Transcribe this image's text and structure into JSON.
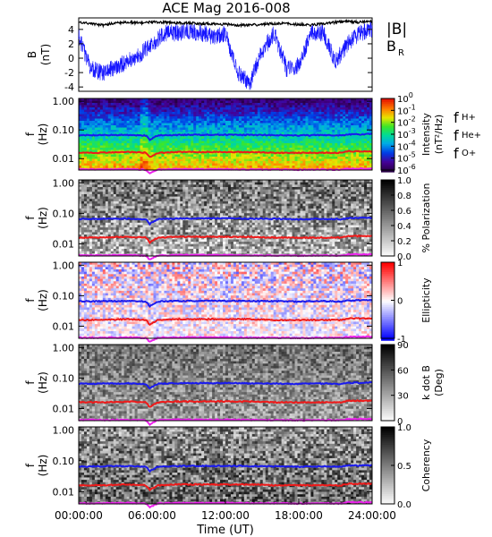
{
  "title": "ACE Mag 2016-008",
  "colors": {
    "babs": "#000000",
    "br": "#1515ff",
    "fH": "#1a1aee",
    "fHe": "#ee1a1a",
    "fO": "#ee22ee",
    "fH_label": "#3333cc",
    "fHe_label": "#cc1111",
    "fO_label": "#dd22dd"
  },
  "chart_data": [
    {
      "type": "line",
      "ylabel": "B\n(nT)",
      "ylim": [
        -4.6,
        5.6
      ],
      "yticks": [
        "4",
        "2",
        "0",
        "-2",
        "-4"
      ],
      "xlim": [
        0,
        24
      ],
      "series": [
        {
          "name": "|B|",
          "x": [
            0,
            1,
            2,
            3,
            4,
            5,
            6,
            7,
            8,
            9,
            10,
            11,
            12,
            13,
            14,
            15,
            16,
            17,
            18,
            19,
            20,
            21,
            22,
            23,
            24
          ],
          "y": [
            5.0,
            4.8,
            4.6,
            4.9,
            5.0,
            4.9,
            5.0,
            5.0,
            4.9,
            4.9,
            4.8,
            4.8,
            4.7,
            4.6,
            4.6,
            4.7,
            4.8,
            4.8,
            4.7,
            4.6,
            4.8,
            5.0,
            5.1,
            5.0,
            5.1
          ]
        },
        {
          "name": "B_R",
          "x": [
            0,
            1,
            2,
            3,
            4,
            5,
            6,
            7,
            8,
            9,
            10,
            11,
            12,
            13,
            14,
            15,
            16,
            17,
            18,
            19,
            20,
            21,
            22,
            23,
            24
          ],
          "y": [
            3.0,
            -1.5,
            -2.0,
            -1.2,
            -0.5,
            0.5,
            2.0,
            3.5,
            3.5,
            3.8,
            3.5,
            3.0,
            3.5,
            -2.0,
            -3.5,
            1.0,
            3.5,
            -1.5,
            -1.0,
            3.5,
            3.5,
            -0.5,
            2.0,
            3.5,
            4.0
          ]
        }
      ],
      "legend": [
        "|B|",
        "B",
        "R"
      ]
    },
    {
      "type": "heatmap",
      "ylabel": "f\n(Hz)",
      "yticks": [
        "1.00",
        "0.10",
        "0.01"
      ],
      "colorbar_label": "Intensity",
      "colorbar_unit": "(nT²/Hz)",
      "colorbar_ticks": [
        "10",
        "10",
        "10",
        "10",
        "10",
        "10",
        "10"
      ],
      "colorbar_exps": [
        "0",
        "-1",
        "-2",
        "-3",
        "-4",
        "-5",
        "-6"
      ],
      "legend": [
        {
          "f": "f",
          "sub": "H+"
        },
        {
          "f": "f",
          "sub": "He+"
        },
        {
          "f": "f",
          "sub": "O+"
        }
      ]
    },
    {
      "type": "heatmap",
      "ylabel": "f\n(Hz)",
      "yticks": [
        "1.00",
        "0.10",
        "0.01"
      ],
      "colorbar_label": "% Polarization",
      "colorbar_ticks": [
        "1.0",
        "0.8",
        "0.6",
        "0.4",
        "0.2",
        "0.0"
      ]
    },
    {
      "type": "heatmap",
      "ylabel": "f\n(Hz)",
      "yticks": [
        "1.00",
        "0.10",
        "0.01"
      ],
      "colorbar_label": "Ellipticity",
      "colorbar_ticks": [
        "1",
        "0",
        "-1"
      ]
    },
    {
      "type": "heatmap",
      "ylabel": "f\n(Hz)",
      "yticks": [
        "1.00",
        "0.10",
        "0.01"
      ],
      "colorbar_label": "k dot B",
      "colorbar_unit": "(Deg)",
      "colorbar_ticks": [
        "90",
        "60",
        "30",
        "0"
      ]
    },
    {
      "type": "heatmap",
      "ylabel": "f\n(Hz)",
      "yticks": [
        "1.00",
        "0.10",
        "0.01"
      ],
      "colorbar_label": "Coherency",
      "colorbar_ticks": [
        "1.0",
        "0.5",
        "0.0"
      ]
    }
  ],
  "gyro_lines": {
    "x": [
      0,
      2,
      4,
      5.5,
      5.8,
      6.5,
      8,
      10,
      12,
      14,
      16,
      18,
      20,
      21.5,
      22,
      23,
      24
    ],
    "fH": [
      0.065,
      0.066,
      0.067,
      0.064,
      0.045,
      0.065,
      0.067,
      0.068,
      0.068,
      0.067,
      0.066,
      0.064,
      0.066,
      0.064,
      0.07,
      0.07,
      0.072
    ],
    "fHe": [
      0.016,
      0.016,
      0.017,
      0.016,
      0.011,
      0.016,
      0.017,
      0.017,
      0.017,
      0.017,
      0.016,
      0.016,
      0.016,
      0.016,
      0.018,
      0.018,
      0.018
    ],
    "fO": [
      0.0042,
      0.0042,
      0.0043,
      0.0041,
      0.003,
      0.0042,
      0.0043,
      0.0043,
      0.0043,
      0.0042,
      0.0042,
      0.0041,
      0.0042,
      0.0041,
      0.0045,
      0.0045,
      0.0045
    ]
  },
  "xaxis": {
    "ticks": [
      "00:00:00",
      "06:00:00",
      "12:00:00",
      "18:00:00",
      "24:00:00"
    ],
    "label": "Time (UT)"
  }
}
